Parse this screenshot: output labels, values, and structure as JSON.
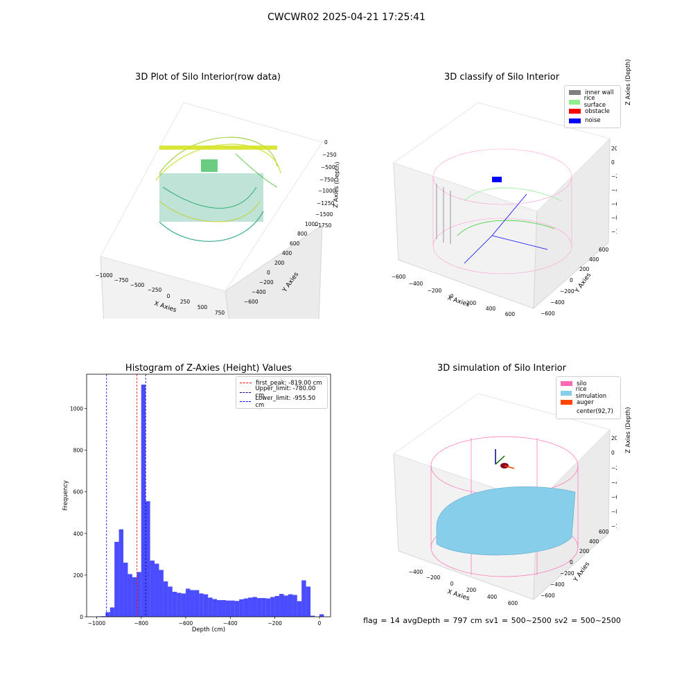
{
  "figure": {
    "suptitle": "CWCWR02 2025-04-21 17:25:41",
    "footer": "flag = 14  avgDepth = 797 cm  sv1 = 500~2500  sv2 = 500~2500"
  },
  "panel_3d_raw": {
    "title": "3D Plot of Silo Interior(row data)",
    "xlabel": "X Axies",
    "ylabel": "Y Axies",
    "zlabel": "Z Axies (Depth)",
    "xticks": [
      "−1000",
      "−750",
      "−500",
      "−250",
      "0",
      "250",
      "500",
      "750"
    ],
    "yticks": [
      "−600",
      "−400",
      "−200",
      "0",
      "200",
      "400",
      "600",
      "800",
      "1000"
    ],
    "zticks": [
      "0",
      "−250",
      "−500",
      "−750",
      "−1000",
      "−1250",
      "−1500",
      "−1750"
    ]
  },
  "panel_3d_classify": {
    "title": "3D classify of Silo Interior",
    "xlabel": "X Axies",
    "ylabel": "Y Axies",
    "zlabel": "Z Axies (Depth)",
    "xticks": [
      "−600",
      "−400",
      "−200",
      "0",
      "200",
      "400",
      "600"
    ],
    "yticks": [
      "−600",
      "−400",
      "−200",
      "0",
      "200",
      "400",
      "600"
    ],
    "zticks": [
      "200",
      "0",
      "−200",
      "−400",
      "−600",
      "−800",
      "−1000"
    ],
    "legend": [
      {
        "label": "inner wall",
        "color": "#808080"
      },
      {
        "label": "rice surface",
        "color": "#90ee90"
      },
      {
        "label": "obstacle",
        "color": "#ff0000"
      },
      {
        "label": "noise",
        "color": "#0000ff"
      }
    ]
  },
  "panel_3d_sim": {
    "title": "3D simulation of Silo Interior",
    "xlabel": "X Axies",
    "ylabel": "Y Axies",
    "zlabel": "Z Axies (Depth)",
    "xticks": [
      "−400",
      "−200",
      "0",
      "200",
      "400",
      "600"
    ],
    "yticks": [
      "−600",
      "−400",
      "−200",
      "0",
      "200",
      "400",
      "600"
    ],
    "zticks": [
      "200",
      "0",
      "−200",
      "−400",
      "−600",
      "−800",
      "−1000"
    ],
    "legend": [
      {
        "label": "silo",
        "color": "#ff69b4"
      },
      {
        "label": "rice simulation",
        "color": "#87ceeb"
      },
      {
        "label": "auger",
        "color": "#ff4500"
      },
      {
        "label": "center(92,7)",
        "color": "#ffffff"
      }
    ]
  },
  "chart_data": {
    "type": "bar",
    "title": "Histogram of Z-Axies (Height) Values",
    "xlabel": "Depth (cm)",
    "ylabel": "Frequency",
    "xlim": [
      -1045,
      50
    ],
    "ylim": [
      0,
      1165
    ],
    "xticks": [
      -1000,
      -800,
      -600,
      -400,
      -200,
      0
    ],
    "xtick_labels": [
      "−1000",
      "−800",
      "−600",
      "−400",
      "−200",
      "0"
    ],
    "yticks": [
      0,
      200,
      400,
      600,
      800,
      1000
    ],
    "bar_color": "#0000ff",
    "bin_width": 20,
    "bin_starts": [
      -1000,
      -980,
      -960,
      -940,
      -920,
      -900,
      -880,
      -860,
      -840,
      -820,
      -800,
      -780,
      -760,
      -740,
      -720,
      -700,
      -680,
      -660,
      -640,
      -620,
      -600,
      -580,
      -560,
      -540,
      -520,
      -500,
      -480,
      -460,
      -440,
      -420,
      -400,
      -380,
      -360,
      -340,
      -320,
      -300,
      -280,
      -260,
      -240,
      -220,
      -200,
      -180,
      -160,
      -140,
      -120,
      -100,
      -80,
      -60,
      -40,
      -20,
      0
    ],
    "values": [
      2,
      3,
      22,
      45,
      360,
      420,
      260,
      205,
      190,
      215,
      1115,
      555,
      270,
      255,
      225,
      170,
      145,
      120,
      115,
      112,
      135,
      128,
      128,
      112,
      108,
      92,
      85,
      80,
      80,
      78,
      78,
      76,
      84,
      88,
      92,
      95,
      90,
      90,
      88,
      95,
      100,
      110,
      102,
      108,
      105,
      75,
      175,
      145,
      5,
      0,
      12
    ],
    "vlines": [
      {
        "label": "first_peak: -819.00 cm",
        "x": -819,
        "color": "#ff0000"
      },
      {
        "label": "Upper_limit: -780.00 cm",
        "x": -780,
        "color": "#00008b"
      },
      {
        "label": "Lower_limit: -955.50 cm",
        "x": -955.5,
        "color": "#0000ff"
      }
    ],
    "legend_placement": "top-right"
  }
}
